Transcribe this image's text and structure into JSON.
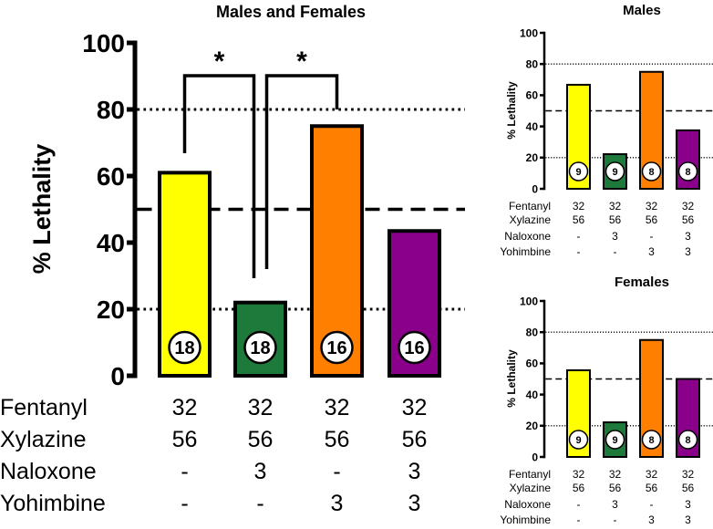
{
  "colors": {
    "yellow": "#ffff00",
    "green": "#1e7a3a",
    "orange": "#ff8000",
    "purple": "#8b008b"
  },
  "chart_data": [
    {
      "type": "bar",
      "title": "Males and Females",
      "ylabel": "% Lethality",
      "ylim": [
        0,
        100
      ],
      "yticks": [
        "0",
        "20",
        "40",
        "60",
        "80",
        "100"
      ],
      "values": [
        61,
        22,
        75,
        43.5
      ],
      "n": [
        "18",
        "18",
        "16",
        "16"
      ],
      "colors": [
        "#ffff00",
        "#1e7a3a",
        "#ff8000",
        "#8b008b"
      ],
      "ref_dotted": [
        20,
        80
      ],
      "ref_dashed": 50,
      "significance": [
        {
          "from": 0,
          "to": 1,
          "label": "*"
        },
        {
          "from": 1,
          "to": 2,
          "label": "*"
        }
      ],
      "table": {
        "rows": [
          {
            "label": "Fentanyl",
            "values": [
              "32",
              "32",
              "32",
              "32"
            ]
          },
          {
            "label": "Xylazine",
            "values": [
              "56",
              "56",
              "56",
              "56"
            ]
          },
          {
            "label": "Naloxone",
            "values": [
              "-",
              "3",
              "-",
              "3"
            ]
          },
          {
            "label": "Yohimbine",
            "values": [
              "-",
              "-",
              "3",
              "3"
            ]
          }
        ]
      }
    },
    {
      "type": "bar",
      "title": "Males",
      "ylabel": "% Lethality",
      "ylim": [
        0,
        100
      ],
      "yticks": [
        "0",
        "20",
        "40",
        "60",
        "80",
        "100"
      ],
      "values": [
        66.7,
        22.2,
        75,
        37.5
      ],
      "n": [
        "9",
        "9",
        "8",
        "8"
      ],
      "colors": [
        "#ffff00",
        "#1e7a3a",
        "#ff8000",
        "#8b008b"
      ],
      "ref_dotted": [
        20,
        80
      ],
      "ref_dashed": 50,
      "table": {
        "rows": [
          {
            "label": "Fentanyl",
            "values": [
              "32",
              "32",
              "32",
              "32"
            ]
          },
          {
            "label": "Xylazine",
            "values": [
              "56",
              "56",
              "56",
              "56"
            ]
          },
          {
            "label": "Naloxone",
            "values": [
              "-",
              "3",
              "-",
              "3"
            ]
          },
          {
            "label": "Yohimbine",
            "values": [
              "-",
              "-",
              "3",
              "3"
            ]
          }
        ]
      }
    },
    {
      "type": "bar",
      "title": "Females",
      "ylabel": "% Lethality",
      "ylim": [
        0,
        100
      ],
      "yticks": [
        "0",
        "20",
        "40",
        "60",
        "80",
        "100"
      ],
      "values": [
        55.6,
        22.2,
        75,
        50
      ],
      "n": [
        "9",
        "9",
        "8",
        "8"
      ],
      "colors": [
        "#ffff00",
        "#1e7a3a",
        "#ff8000",
        "#8b008b"
      ],
      "ref_dotted": [
        20,
        80
      ],
      "ref_dashed": 50,
      "table": {
        "rows": [
          {
            "label": "Fentanyl",
            "values": [
              "32",
              "32",
              "32",
              "32"
            ]
          },
          {
            "label": "Xylazine",
            "values": [
              "56",
              "56",
              "56",
              "56"
            ]
          },
          {
            "label": "Naloxone",
            "values": [
              "-",
              "3",
              "-",
              "3"
            ]
          },
          {
            "label": "Yohimbine",
            "values": [
              "-",
              "-",
              "3",
              "3"
            ]
          }
        ]
      }
    }
  ]
}
